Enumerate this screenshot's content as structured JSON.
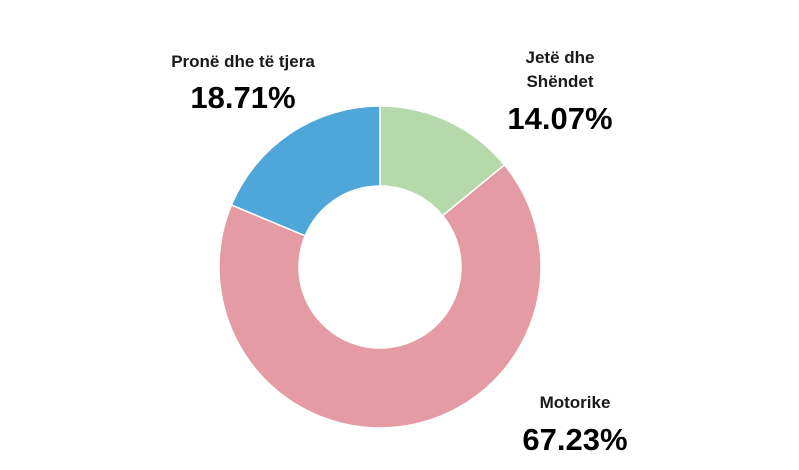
{
  "chart_data": {
    "type": "pie",
    "variant": "donut",
    "legend": "none",
    "start_angle_deg": 0,
    "direction": "clockwise",
    "slices": [
      {
        "label": "Jetë dhe Shëndet",
        "label_lines": [
          "Jetë dhe",
          "Shëndet"
        ],
        "value": 14.07,
        "display": "14.07%",
        "color": "#b5d9ab"
      },
      {
        "label": "Motorike",
        "label_lines": [
          "Motorike"
        ],
        "value": 67.23,
        "display": "67.23%",
        "color": "#e59ba4"
      },
      {
        "label": "Pronë dhe të tjera",
        "label_lines": [
          "Pronë dhe të tjera"
        ],
        "value": 18.71,
        "display": "18.71%",
        "color": "#4ea6d9"
      }
    ]
  }
}
